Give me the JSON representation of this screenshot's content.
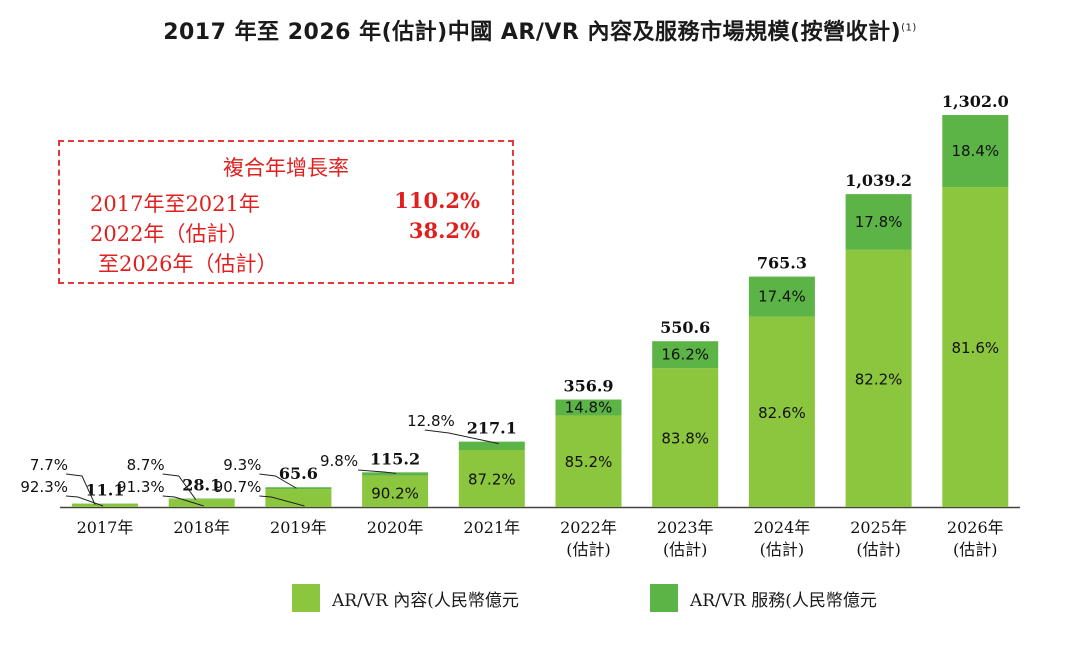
{
  "title": "2017 年至 2026 年(估計)中國 AR/VR 內容及服務市場規模(按營收計)",
  "title_note": "(1)",
  "cagr": {
    "heading": "複合年增長率",
    "rows": [
      {
        "label": "2017年至2021年",
        "value": "110.2%"
      },
      {
        "label": "2022年（估計）",
        "value": "38.2%"
      },
      {
        "label": "至2026年（估計）",
        "value": ""
      }
    ]
  },
  "legend": [
    {
      "label": "AR/VR 內容(人民幣億元",
      "color": "#8cc63f"
    },
    {
      "label": "AR/VR 服務(人民幣億元",
      "color": "#5cb346"
    }
  ],
  "colors": {
    "content": "#8cc63f",
    "service": "#5cb346",
    "axis": "#444444",
    "callout": "#222222"
  },
  "chart_data": {
    "type": "bar",
    "stacked": true,
    "categories": [
      "2017年",
      "2018年",
      "2019年",
      "2020年",
      "2021年",
      "2022年\n(估計)",
      "2023年\n(估計)",
      "2024年\n(估計)",
      "2025年\n(估計)",
      "2026年\n(估計)"
    ],
    "totals": [
      11.1,
      28.1,
      65.6,
      115.2,
      217.1,
      356.9,
      550.6,
      765.3,
      1039.2,
      1302.0
    ],
    "total_labels": [
      "11.1",
      "28.1",
      "65.6",
      "115.2",
      "217.1",
      "356.9",
      "550.6",
      "765.3",
      "1,039.2",
      "1,302.0"
    ],
    "series": [
      {
        "name": "AR/VR 內容(人民幣億元",
        "share_labels": [
          "92.3%",
          "91.3%",
          "90.7%",
          "90.2%",
          "87.2%",
          "85.2%",
          "83.8%",
          "82.6%",
          "82.2%",
          "81.6%"
        ]
      },
      {
        "name": "AR/VR 服務(人民幣億元",
        "share_labels": [
          "7.7%",
          "8.7%",
          "9.3%",
          "9.8%",
          "12.8%",
          "14.8%",
          "16.2%",
          "17.4%",
          "17.8%",
          "18.4%"
        ]
      }
    ],
    "ylim": [
      0,
      1302.0
    ],
    "grid": false,
    "legend_position": "bottom"
  }
}
